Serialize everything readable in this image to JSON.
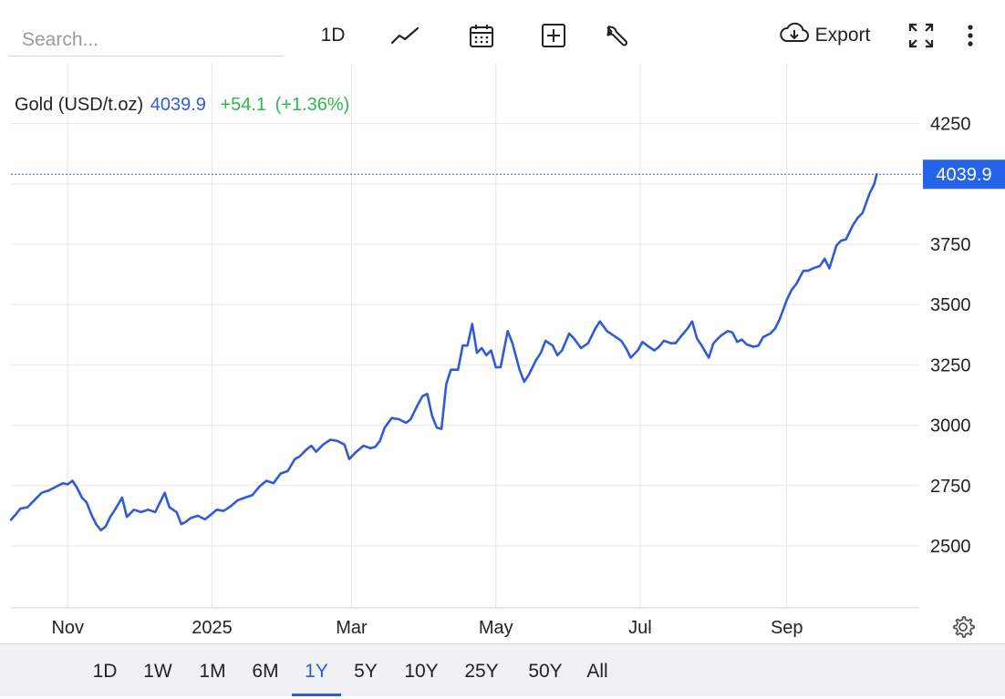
{
  "search": {
    "placeholder": "Search..."
  },
  "toolbar": {
    "interval_label": "1D",
    "export_label": "Export",
    "icons": [
      "line-chart-icon",
      "calendar-icon",
      "plus-box-icon",
      "wrench-icon",
      "cloud-download-icon",
      "fullscreen-icon",
      "more-vertical-icon"
    ]
  },
  "legend": {
    "name": "Gold (USD/t.oz)",
    "price": "4039.9",
    "change": "+54.1",
    "change_pct": "(+1.36%)"
  },
  "colors": {
    "line": "#2f5bd8",
    "price_tag_bg": "#2563eb",
    "positive": "#2fb84a",
    "grid": "#e6e6e6",
    "range_bar_bg": "#f0f1f4"
  },
  "range_buttons": [
    "1D",
    "1W",
    "1M",
    "6M",
    "1Y",
    "5Y",
    "10Y",
    "25Y",
    "50Y",
    "All"
  ],
  "active_range": "1Y",
  "chart_data": {
    "type": "line",
    "title": "Gold (USD/t.oz)",
    "last_value": 4039.9,
    "last_value_label": "4039.9",
    "y_ticks": [
      2500,
      2750,
      3000,
      3250,
      3500,
      3750,
      4250
    ],
    "y_tick_labels": [
      "2500",
      "2750",
      "3000",
      "3250",
      "3500",
      "3750",
      "4250"
    ],
    "ylim": [
      2250,
      4280
    ],
    "x_ticks": [
      {
        "label": "Nov",
        "date": "2024-11-01"
      },
      {
        "label": "2025",
        "date": "2025-01-01"
      },
      {
        "label": "Mar",
        "date": "2025-03-01"
      },
      {
        "label": "May",
        "date": "2025-05-01"
      },
      {
        "label": "Jul",
        "date": "2025-07-01"
      },
      {
        "label": "Sep",
        "date": "2025-09-01"
      }
    ],
    "xlim": [
      "2024-10-08",
      "2025-10-27"
    ],
    "grid": true,
    "series": [
      {
        "values": [
          [
            "2024-10-08",
            2608
          ],
          [
            "2024-10-10",
            2630
          ],
          [
            "2024-10-12",
            2655
          ],
          [
            "2024-10-15",
            2660
          ],
          [
            "2024-10-18",
            2690
          ],
          [
            "2024-10-21",
            2720
          ],
          [
            "2024-10-24",
            2730
          ],
          [
            "2024-10-27",
            2745
          ],
          [
            "2024-10-30",
            2760
          ],
          [
            "2024-11-01",
            2755
          ],
          [
            "2024-11-03",
            2770
          ],
          [
            "2024-11-05",
            2740
          ],
          [
            "2024-11-07",
            2700
          ],
          [
            "2024-11-09",
            2680
          ],
          [
            "2024-11-11",
            2630
          ],
          [
            "2024-11-13",
            2590
          ],
          [
            "2024-11-15",
            2565
          ],
          [
            "2024-11-17",
            2580
          ],
          [
            "2024-11-19",
            2620
          ],
          [
            "2024-11-21",
            2650
          ],
          [
            "2024-11-24",
            2700
          ],
          [
            "2024-11-26",
            2620
          ],
          [
            "2024-11-29",
            2650
          ],
          [
            "2024-12-02",
            2640
          ],
          [
            "2024-12-05",
            2650
          ],
          [
            "2024-12-08",
            2640
          ],
          [
            "2024-12-10",
            2680
          ],
          [
            "2024-12-12",
            2720
          ],
          [
            "2024-12-14",
            2660
          ],
          [
            "2024-12-17",
            2640
          ],
          [
            "2024-12-19",
            2590
          ],
          [
            "2024-12-21",
            2600
          ],
          [
            "2024-12-23",
            2615
          ],
          [
            "2024-12-26",
            2625
          ],
          [
            "2024-12-29",
            2610
          ],
          [
            "2024-12-31",
            2625
          ],
          [
            "2025-01-03",
            2650
          ],
          [
            "2025-01-06",
            2645
          ],
          [
            "2025-01-09",
            2665
          ],
          [
            "2025-01-12",
            2690
          ],
          [
            "2025-01-15",
            2700
          ],
          [
            "2025-01-18",
            2710
          ],
          [
            "2025-01-21",
            2745
          ],
          [
            "2025-01-24",
            2770
          ],
          [
            "2025-01-27",
            2760
          ],
          [
            "2025-01-30",
            2800
          ],
          [
            "2025-02-02",
            2810
          ],
          [
            "2025-02-05",
            2860
          ],
          [
            "2025-02-07",
            2870
          ],
          [
            "2025-02-10",
            2900
          ],
          [
            "2025-02-12",
            2915
          ],
          [
            "2025-02-14",
            2890
          ],
          [
            "2025-02-17",
            2920
          ],
          [
            "2025-02-20",
            2940
          ],
          [
            "2025-02-23",
            2935
          ],
          [
            "2025-02-26",
            2920
          ],
          [
            "2025-02-28",
            2860
          ],
          [
            "2025-03-03",
            2890
          ],
          [
            "2025-03-06",
            2915
          ],
          [
            "2025-03-09",
            2905
          ],
          [
            "2025-03-11",
            2910
          ],
          [
            "2025-03-13",
            2935
          ],
          [
            "2025-03-15",
            2990
          ],
          [
            "2025-03-18",
            3030
          ],
          [
            "2025-03-21",
            3025
          ],
          [
            "2025-03-24",
            3010
          ],
          [
            "2025-03-26",
            3025
          ],
          [
            "2025-03-29",
            3085
          ],
          [
            "2025-03-31",
            3120
          ],
          [
            "2025-04-02",
            3130
          ],
          [
            "2025-04-04",
            3040
          ],
          [
            "2025-04-06",
            2990
          ],
          [
            "2025-04-08",
            2985
          ],
          [
            "2025-04-10",
            3170
          ],
          [
            "2025-04-12",
            3230
          ],
          [
            "2025-04-15",
            3230
          ],
          [
            "2025-04-17",
            3330
          ],
          [
            "2025-04-19",
            3330
          ],
          [
            "2025-04-21",
            3420
          ],
          [
            "2025-04-23",
            3300
          ],
          [
            "2025-04-25",
            3320
          ],
          [
            "2025-04-27",
            3290
          ],
          [
            "2025-04-29",
            3310
          ],
          [
            "2025-05-01",
            3240
          ],
          [
            "2025-05-03",
            3240
          ],
          [
            "2025-05-06",
            3390
          ],
          [
            "2025-05-08",
            3340
          ],
          [
            "2025-05-11",
            3230
          ],
          [
            "2025-05-13",
            3180
          ],
          [
            "2025-05-15",
            3210
          ],
          [
            "2025-05-18",
            3270
          ],
          [
            "2025-05-20",
            3300
          ],
          [
            "2025-05-22",
            3350
          ],
          [
            "2025-05-25",
            3330
          ],
          [
            "2025-05-27",
            3290
          ],
          [
            "2025-05-29",
            3310
          ],
          [
            "2025-06-01",
            3380
          ],
          [
            "2025-06-03",
            3360
          ],
          [
            "2025-06-06",
            3320
          ],
          [
            "2025-06-09",
            3340
          ],
          [
            "2025-06-12",
            3400
          ],
          [
            "2025-06-14",
            3430
          ],
          [
            "2025-06-17",
            3390
          ],
          [
            "2025-06-20",
            3370
          ],
          [
            "2025-06-23",
            3350
          ],
          [
            "2025-06-25",
            3320
          ],
          [
            "2025-06-27",
            3280
          ],
          [
            "2025-06-30",
            3310
          ],
          [
            "2025-07-02",
            3345
          ],
          [
            "2025-07-04",
            3330
          ],
          [
            "2025-07-07",
            3310
          ],
          [
            "2025-07-09",
            3325
          ],
          [
            "2025-07-11",
            3350
          ],
          [
            "2025-07-14",
            3340
          ],
          [
            "2025-07-16",
            3340
          ],
          [
            "2025-07-18",
            3365
          ],
          [
            "2025-07-21",
            3400
          ],
          [
            "2025-07-23",
            3430
          ],
          [
            "2025-07-25",
            3360
          ],
          [
            "2025-07-27",
            3330
          ],
          [
            "2025-07-30",
            3280
          ],
          [
            "2025-08-01",
            3340
          ],
          [
            "2025-08-04",
            3370
          ],
          [
            "2025-08-07",
            3390
          ],
          [
            "2025-08-09",
            3385
          ],
          [
            "2025-08-11",
            3345
          ],
          [
            "2025-08-13",
            3355
          ],
          [
            "2025-08-15",
            3335
          ],
          [
            "2025-08-18",
            3325
          ],
          [
            "2025-08-20",
            3330
          ],
          [
            "2025-08-22",
            3365
          ],
          [
            "2025-08-25",
            3380
          ],
          [
            "2025-08-27",
            3400
          ],
          [
            "2025-08-29",
            3440
          ],
          [
            "2025-09-01",
            3520
          ],
          [
            "2025-09-03",
            3560
          ],
          [
            "2025-09-05",
            3585
          ],
          [
            "2025-09-08",
            3640
          ],
          [
            "2025-09-10",
            3640
          ],
          [
            "2025-09-12",
            3650
          ],
          [
            "2025-09-15",
            3660
          ],
          [
            "2025-09-17",
            3690
          ],
          [
            "2025-09-19",
            3650
          ],
          [
            "2025-09-22",
            3745
          ],
          [
            "2025-09-24",
            3765
          ],
          [
            "2025-09-26",
            3770
          ],
          [
            "2025-09-29",
            3830
          ],
          [
            "2025-10-01",
            3860
          ],
          [
            "2025-10-03",
            3880
          ],
          [
            "2025-10-06",
            3960
          ],
          [
            "2025-10-08",
            4000
          ],
          [
            "2025-10-09",
            4039.9
          ]
        ]
      }
    ]
  }
}
